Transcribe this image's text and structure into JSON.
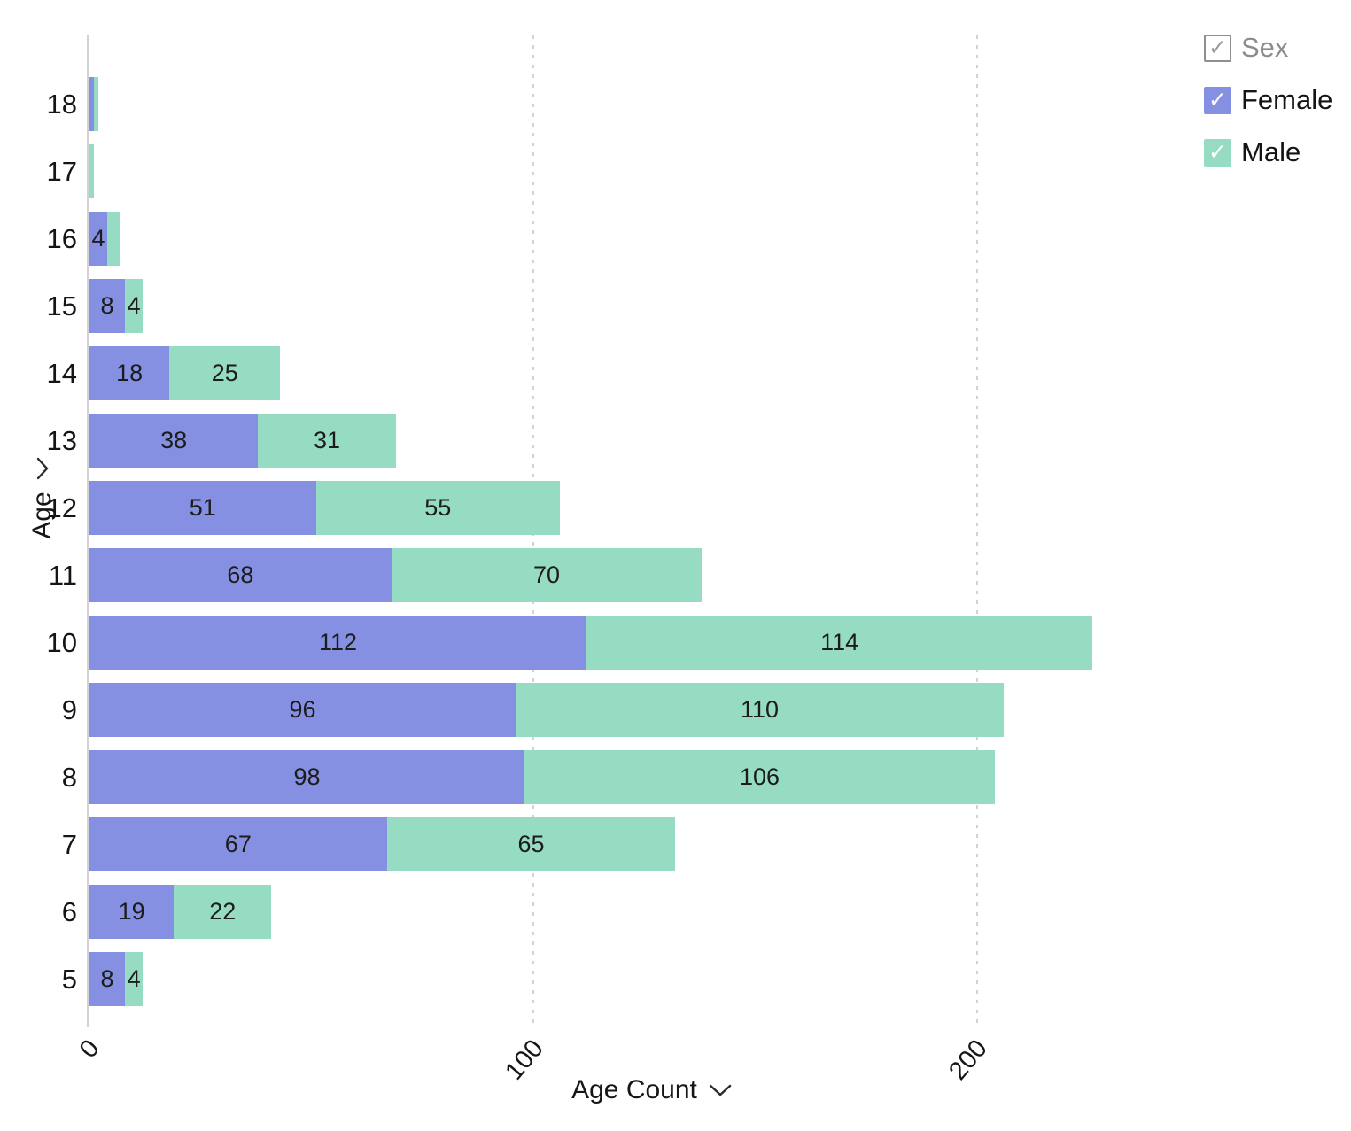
{
  "chart_data": {
    "type": "bar",
    "orientation": "horizontal",
    "stacked": true,
    "title": "",
    "xlabel": "Age Count",
    "ylabel": "Age",
    "categories": [
      "18",
      "17",
      "16",
      "15",
      "14",
      "13",
      "12",
      "11",
      "10",
      "9",
      "8",
      "7",
      "6",
      "5"
    ],
    "series": [
      {
        "name": "Female",
        "color": "#8690e2",
        "values": [
          1,
          0,
          4,
          8,
          18,
          38,
          51,
          68,
          112,
          96,
          98,
          67,
          19,
          8
        ]
      },
      {
        "name": "Male",
        "color": "#95dcc3",
        "values": [
          1,
          1,
          3,
          4,
          25,
          31,
          55,
          70,
          114,
          110,
          106,
          65,
          22,
          4
        ]
      }
    ],
    "x_ticks": [
      0,
      100,
      200
    ],
    "x_tick_labels": [
      "0",
      "100",
      "200"
    ],
    "xlim": [
      0,
      240
    ],
    "grid": "vertical-dashed",
    "legend_position": "top-right",
    "value_labels": "shown inside segments when wide enough"
  },
  "axes": {
    "y_label": "Age",
    "x_label": "Age Count"
  },
  "legend": {
    "title_label": "Sex",
    "female_label": "Female",
    "male_label": "Male",
    "title_checked": true,
    "female_checked": true,
    "male_checked": true
  },
  "colors": {
    "female": "#8690e2",
    "male": "#95dcc3",
    "gridline": "#d2d2d6",
    "axis_line": "#d2d2d4",
    "text": "#161616",
    "legend_muted": "#8c8c8c"
  },
  "glyphs": {
    "checkmark": "✓"
  }
}
